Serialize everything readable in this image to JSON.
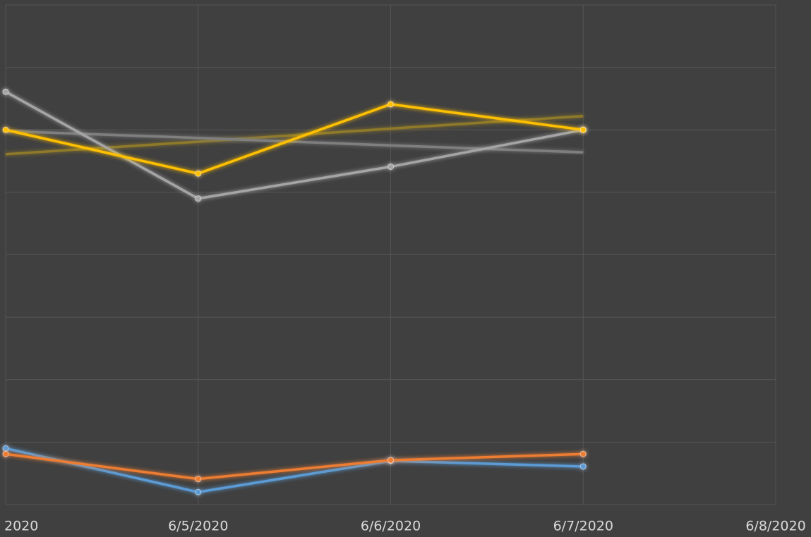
{
  "chart_data": {
    "type": "line",
    "categories": [
      "2020",
      "6/5/2020",
      "6/6/2020",
      "6/7/2020",
      "6/8/2020"
    ],
    "ylim": [
      0,
      8
    ],
    "yticks": [
      0,
      1,
      2,
      3,
      4,
      5,
      6,
      7,
      8
    ],
    "grid": true,
    "series": [
      {
        "color": "#8f7a2a",
        "markers": false,
        "values": [
          5.61,
          5.81,
          6.02,
          6.22,
          null
        ]
      },
      {
        "color": "#7f7f7f",
        "markers": false,
        "values": [
          5.98,
          5.87,
          5.75,
          5.64,
          null
        ]
      },
      {
        "color": "#a5a5a5",
        "markers": true,
        "values": [
          6.61,
          4.9,
          5.41,
          6.0,
          null
        ]
      },
      {
        "color": "#ffc000",
        "markers": true,
        "values": [
          6.0,
          5.3,
          6.41,
          6.0,
          null
        ]
      },
      {
        "color": "#5b9bd5",
        "markers": true,
        "values": [
          0.9,
          0.2,
          0.7,
          0.61,
          null
        ]
      },
      {
        "color": "#ed7d31",
        "markers": true,
        "values": [
          0.81,
          0.41,
          0.71,
          0.81,
          null
        ]
      }
    ]
  }
}
